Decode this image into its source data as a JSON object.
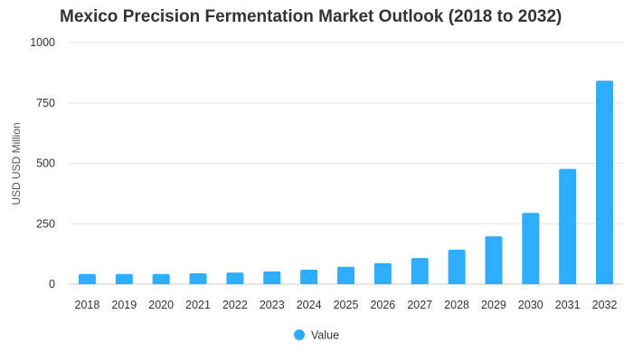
{
  "chart_data": {
    "type": "bar",
    "title": "Mexico Precision Fermentation Market Outlook (2018 to 2032)",
    "xlabel": "",
    "ylabel": "USD USD Million",
    "ylim": [
      0,
      1000
    ],
    "yticks": [
      0,
      250,
      500,
      750,
      1000
    ],
    "categories": [
      "2018",
      "2019",
      "2020",
      "2021",
      "2022",
      "2023",
      "2024",
      "2025",
      "2026",
      "2027",
      "2028",
      "2029",
      "2030",
      "2031",
      "2032"
    ],
    "series": [
      {
        "name": "Value",
        "values": [
          42,
          42,
          42,
          45,
          48,
          53,
          60,
          72,
          87,
          108,
          143,
          198,
          295,
          477,
          842
        ]
      }
    ],
    "grid": true,
    "legend_position": "bottom-center",
    "colors": {
      "bar": "#2EADFF",
      "grid": "#e6e6e6",
      "axis": "#cccccc",
      "text": "#333333"
    }
  }
}
